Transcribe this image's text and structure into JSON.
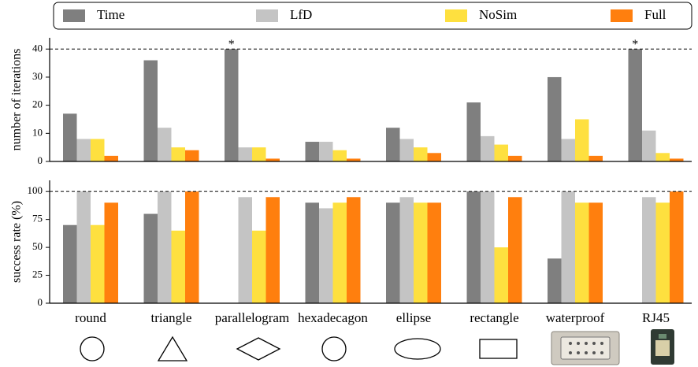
{
  "chart_data": [
    {
      "type": "bar",
      "ylabel": "number of iterations",
      "ylim": [
        0,
        44
      ],
      "yticks": [
        0,
        10,
        20,
        30,
        40
      ],
      "reference_line": 40,
      "series": [
        {
          "name": "Time",
          "color": "#7f7f7f",
          "values": [
            17,
            36,
            40,
            7,
            12,
            21,
            30,
            40
          ]
        },
        {
          "name": "LfD",
          "color": "#c4c4c4",
          "values": [
            8,
            12,
            5,
            7,
            8,
            9,
            8,
            11
          ]
        },
        {
          "name": "NoSim",
          "color": "#fee03f",
          "values": [
            8,
            5,
            5,
            4,
            5,
            6,
            15,
            3
          ]
        },
        {
          "name": "Full",
          "color": "#ff7f0e",
          "values": [
            2,
            4,
            1,
            1,
            3,
            2,
            2,
            1
          ]
        }
      ],
      "annotations": [
        {
          "text": "*",
          "category": 2,
          "y": 40
        },
        {
          "text": "*",
          "category": 7,
          "y": 40
        }
      ]
    },
    {
      "type": "bar",
      "ylabel": "success rate (%)",
      "ylim": [
        0,
        110
      ],
      "yticks": [
        0,
        25,
        50,
        75,
        100
      ],
      "reference_line": 100,
      "categories": [
        "round",
        "triangle",
        "parallelogram",
        "hexadecagon",
        "ellipse",
        "rectangle",
        "waterproof",
        "RJ45"
      ],
      "series": [
        {
          "name": "Time",
          "color": "#7f7f7f",
          "values": [
            70,
            80,
            0,
            90,
            90,
            100,
            40,
            0
          ]
        },
        {
          "name": "LfD",
          "color": "#c4c4c4",
          "values": [
            100,
            100,
            95,
            85,
            95,
            100,
            100,
            95
          ]
        },
        {
          "name": "NoSim",
          "color": "#fee03f",
          "values": [
            70,
            65,
            65,
            90,
            90,
            50,
            90,
            90
          ]
        },
        {
          "name": "Full",
          "color": "#ff7f0e",
          "values": [
            90,
            100,
            95,
            95,
            90,
            95,
            90,
            100
          ]
        }
      ]
    }
  ]
}
